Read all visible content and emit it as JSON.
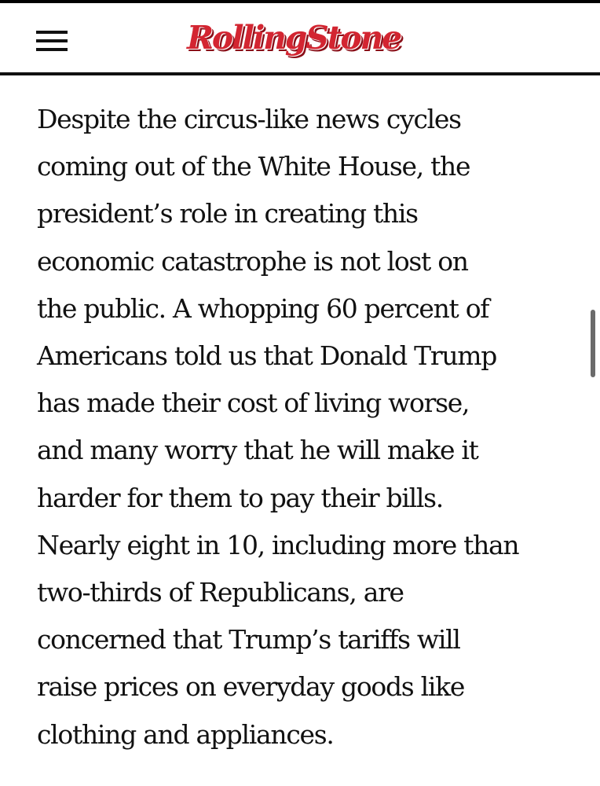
{
  "header": {
    "logo_text": "RollingStone",
    "brand_color": "#d32531",
    "menu_icon": "hamburger-menu-icon"
  },
  "article": {
    "lines": [
      "Despite the circus-like news cycles",
      "coming out of the White House, the",
      "president’s role in creating this",
      "economic catastrophe is not lost on",
      "the public. A whopping 60 percent of",
      "Americans told us that Donald Trump",
      "has made their cost of living worse,",
      "and many worry that he will make it",
      "harder for them to pay their bills.",
      "Nearly eight in 10, including more than",
      "two-thirds of Republicans, are",
      "concerned that Trump’s tariffs will",
      "raise prices on everyday goods like",
      "clothing and appliances."
    ]
  }
}
